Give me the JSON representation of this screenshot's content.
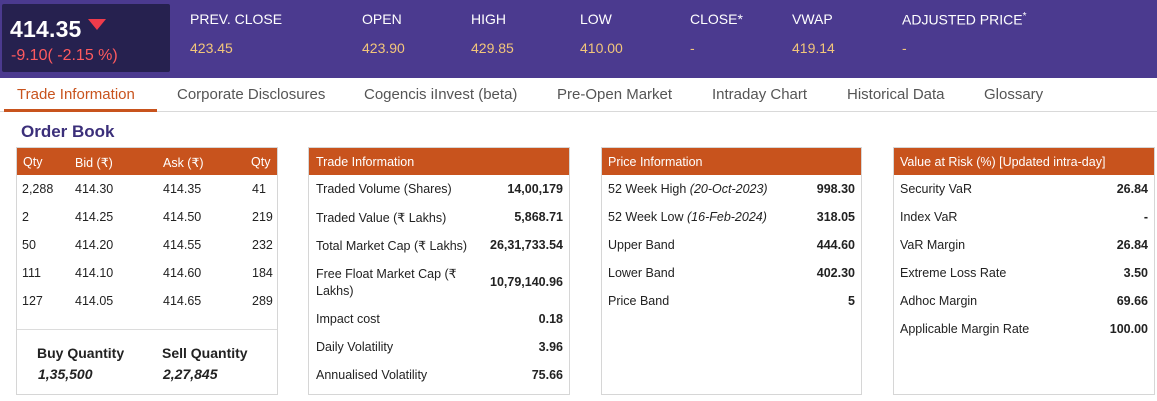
{
  "quote": {
    "ltp": "414.35",
    "change": "-9.10( -2.15 %)",
    "stats": [
      {
        "label": "PREV. CLOSE",
        "value": "423.45"
      },
      {
        "label": "OPEN",
        "value": "423.90"
      },
      {
        "label": "HIGH",
        "value": "429.85"
      },
      {
        "label": "LOW",
        "value": "410.00"
      },
      {
        "label": "CLOSE*",
        "value": "-"
      },
      {
        "label": "VWAP",
        "value": "419.14"
      },
      {
        "label": "ADJUSTED PRICE",
        "label_sup": "*",
        "value": "-"
      }
    ]
  },
  "tabs": [
    "Trade Information",
    "Corporate Disclosures",
    "Cogencis iInvest (beta)",
    "Pre-Open Market",
    "Intraday Chart",
    "Historical Data",
    "Glossary"
  ],
  "order_book": {
    "title": "Order Book",
    "headers": [
      "Qty",
      "Bid (₹)",
      "Ask (₹)",
      "Qty"
    ],
    "rows": [
      [
        "2,288",
        "414.30",
        "414.35",
        "41"
      ],
      [
        "2",
        "414.25",
        "414.50",
        "219"
      ],
      [
        "50",
        "414.20",
        "414.55",
        "232"
      ],
      [
        "111",
        "414.10",
        "414.60",
        "184"
      ],
      [
        "127",
        "414.05",
        "414.65",
        "289"
      ]
    ],
    "buy_quantity_label": "Buy Quantity",
    "buy_quantity": "1,35,500",
    "sell_quantity_label": "Sell Quantity",
    "sell_quantity": "2,27,845"
  },
  "trade_info": {
    "title": "Trade Information",
    "rows": [
      {
        "label": "Traded Volume (Shares)",
        "value": "14,00,179"
      },
      {
        "label": "Traded Value (₹ Lakhs)",
        "value": "5,868.71"
      },
      {
        "label": "Total Market Cap (₹ Lakhs)",
        "value": "26,31,733.54"
      },
      {
        "label": "Free Float Market Cap (₹",
        "label2": "Lakhs)",
        "value": "10,79,140.96"
      },
      {
        "label": "Impact cost",
        "value": "0.18"
      },
      {
        "label": "Daily Volatility",
        "value": "3.96"
      },
      {
        "label": "Annualised Volatility",
        "value": "75.66"
      }
    ]
  },
  "price_info": {
    "title": "Price Information",
    "rows": [
      {
        "label": "52 Week High",
        "note": "(20-Oct-2023)",
        "value": "998.30"
      },
      {
        "label": "52 Week Low",
        "note": "(16-Feb-2024)",
        "value": "318.05"
      },
      {
        "label": "Upper Band",
        "value": "444.60"
      },
      {
        "label": "Lower Band",
        "value": "402.30"
      },
      {
        "label": "Price Band",
        "value": "5"
      }
    ]
  },
  "var_info": {
    "title": "Value at Risk (%) [Updated intra-day]",
    "rows": [
      {
        "label": "Security VaR",
        "value": "26.84"
      },
      {
        "label": "Index VaR",
        "value": "-"
      },
      {
        "label": "VaR Margin",
        "value": "26.84"
      },
      {
        "label": "Extreme Loss Rate",
        "value": "3.50"
      },
      {
        "label": "Adhoc Margin",
        "value": "69.66"
      },
      {
        "label": "Applicable Margin Rate",
        "value": "100.00"
      }
    ]
  },
  "colors": {
    "header_bg": "#4b3a8f",
    "price_box_bg": "#26214f",
    "accent": "#c8531d",
    "negative": "#ff5a5f",
    "stat_value": "#f3c67a",
    "title": "#3b2f7a"
  }
}
